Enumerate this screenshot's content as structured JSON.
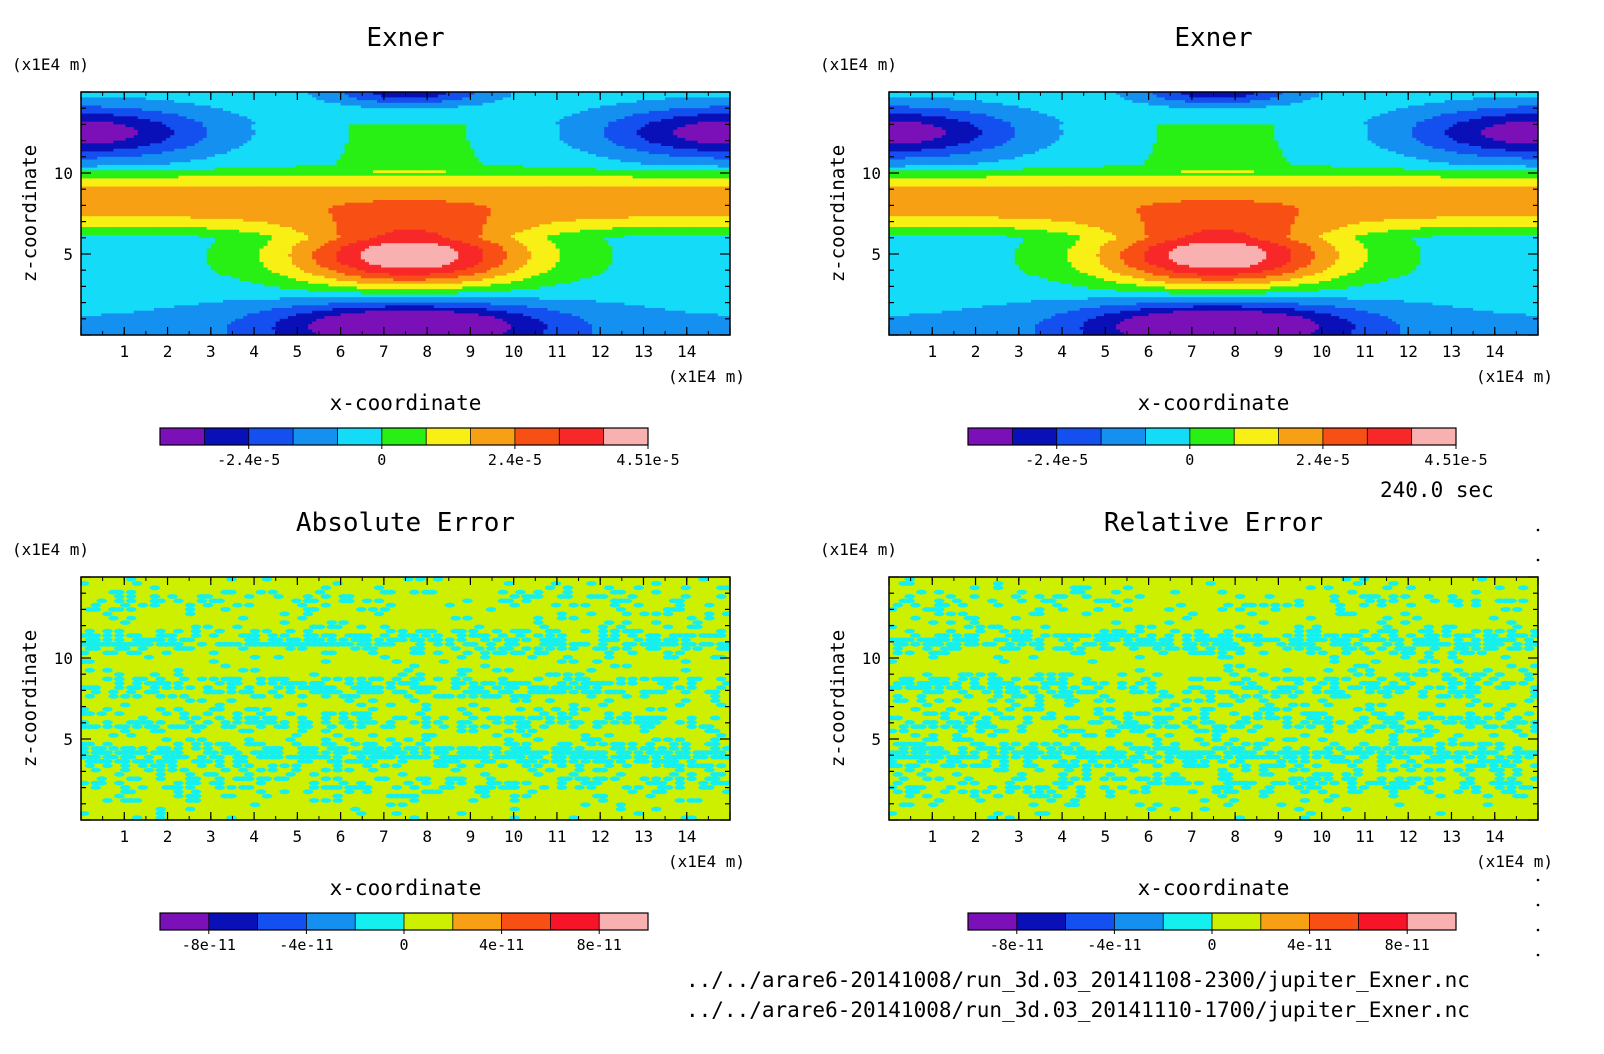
{
  "chart_data": [
    {
      "type": "heatmap",
      "title": "Exner",
      "xlabel": "x-coordinate",
      "ylabel": "z-coordinate",
      "x_unit": "(x1E4 m)",
      "y_unit": "(x1E4 m)",
      "xlim": [
        0,
        15
      ],
      "ylim": [
        0,
        15
      ],
      "x_ticks": [
        "1",
        "2",
        "3",
        "4",
        "5",
        "6",
        "7",
        "8",
        "9",
        "10",
        "11",
        "12",
        "13",
        "14"
      ],
      "y_ticks": [
        "5",
        "10"
      ],
      "colorbar": {
        "colors": [
          "#7b10b8",
          "#0a10b8",
          "#1450f0",
          "#1490f0",
          "#14dcf8",
          "#28f014",
          "#f8f014",
          "#f8a014",
          "#f85014",
          "#f82828",
          "#f8b0b0"
        ],
        "tick_labels": [
          "-2.4e-5",
          "0",
          "2.4e-5",
          "4.51e-5"
        ]
      },
      "field": "exner"
    },
    {
      "type": "heatmap",
      "title": "Exner",
      "xlabel": "x-coordinate",
      "ylabel": "z-coordinate",
      "x_unit": "(x1E4 m)",
      "y_unit": "(x1E4 m)",
      "xlim": [
        0,
        15
      ],
      "ylim": [
        0,
        15
      ],
      "x_ticks": [
        "1",
        "2",
        "3",
        "4",
        "5",
        "6",
        "7",
        "8",
        "9",
        "10",
        "11",
        "12",
        "13",
        "14"
      ],
      "y_ticks": [
        "5",
        "10"
      ],
      "colorbar": {
        "colors": [
          "#7b10b8",
          "#0a10b8",
          "#1450f0",
          "#1490f0",
          "#14dcf8",
          "#28f014",
          "#f8f014",
          "#f8a014",
          "#f85014",
          "#f82828",
          "#f8b0b0"
        ],
        "tick_labels": [
          "-2.4e-5",
          "0",
          "2.4e-5",
          "4.51e-5"
        ]
      },
      "field": "exner"
    },
    {
      "type": "heatmap",
      "title": "Absolute Error",
      "xlabel": "x-coordinate",
      "ylabel": "z-coordinate",
      "x_unit": "(x1E4 m)",
      "y_unit": "(x1E4 m)",
      "xlim": [
        0,
        15
      ],
      "ylim": [
        0,
        15
      ],
      "x_ticks": [
        "1",
        "2",
        "3",
        "4",
        "5",
        "6",
        "7",
        "8",
        "9",
        "10",
        "11",
        "12",
        "13",
        "14"
      ],
      "y_ticks": [
        "5",
        "10"
      ],
      "colorbar": {
        "colors": [
          "#7b10b8",
          "#0a10b8",
          "#1450f0",
          "#1490f0",
          "#14f0f0",
          "#ccf000",
          "#f8a014",
          "#f85014",
          "#f81428",
          "#f8b0b0"
        ],
        "tick_labels": [
          "-8e-11",
          "-4e-11",
          "0",
          "4e-11",
          "8e-11"
        ]
      },
      "field": "error"
    },
    {
      "type": "heatmap",
      "title": "Relative Error",
      "xlabel": "x-coordinate",
      "ylabel": "z-coordinate",
      "x_unit": "(x1E4 m)",
      "y_unit": "(x1E4 m)",
      "xlim": [
        0,
        15
      ],
      "ylim": [
        0,
        15
      ],
      "x_ticks": [
        "1",
        "2",
        "3",
        "4",
        "5",
        "6",
        "7",
        "8",
        "9",
        "10",
        "11",
        "12",
        "13",
        "14"
      ],
      "y_ticks": [
        "5",
        "10"
      ],
      "colorbar": {
        "colors": [
          "#7b10b8",
          "#0a10b8",
          "#1450f0",
          "#1490f0",
          "#14f0f0",
          "#ccf000",
          "#f8a014",
          "#f85014",
          "#f81428",
          "#f8b0b0"
        ],
        "tick_labels": [
          "-8e-11",
          "-4e-11",
          "0",
          "4e-11",
          "8e-11"
        ]
      },
      "field": "error"
    }
  ],
  "time_label": "240.0 sec",
  "file_paths": [
    "../../arare6-20141008/run_3d.03_20141108-2300/jupiter_Exner.nc",
    "../../arare6-20141008/run_3d.03_20141110-1700/jupiter_Exner.nc"
  ]
}
